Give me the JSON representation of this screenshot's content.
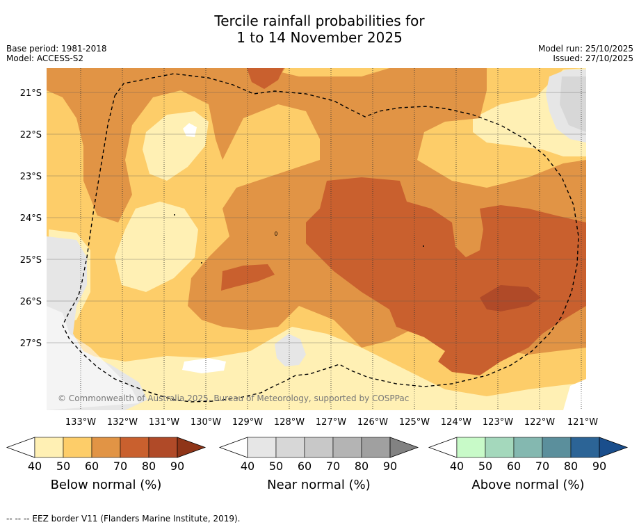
{
  "title": {
    "line1": "Tercile rainfall probabilities for",
    "line2": "1 to 14 November 2025"
  },
  "meta": {
    "base_period": "Base period: 1981-2018",
    "model": "Model: ACCESS-S2",
    "model_run": "Model run: 25/10/2025",
    "issued": "Issued: 27/10/2025"
  },
  "map": {
    "lat_labels": [
      "21°S",
      "22°S",
      "23°S",
      "24°S",
      "25°S",
      "26°S",
      "27°S"
    ],
    "lon_labels": [
      "133°W",
      "132°W",
      "131°W",
      "130°W",
      "129°W",
      "128°W",
      "127°W",
      "126°W",
      "125°W",
      "124°W",
      "123°W",
      "122°W",
      "121°W"
    ],
    "copyright": "© Commonwealth of Australia 2025, Bureau of Meteorology, supported by COSPPac"
  },
  "colorbars": [
    {
      "title": "Below normal (%)",
      "ticks": [
        "40",
        "50",
        "60",
        "70",
        "80",
        "90"
      ],
      "colors": [
        "#fff0b4",
        "#fdcd69",
        "#e19445",
        "#c9602e",
        "#b04a28",
        "#8f3518"
      ]
    },
    {
      "title": "Near normal (%)",
      "ticks": [
        "40",
        "50",
        "60",
        "70",
        "80",
        "90"
      ],
      "colors": [
        "#e6e6e6",
        "#d7d7d7",
        "#c8c8c8",
        "#b4b4b4",
        "#a0a0a0",
        "#828282"
      ]
    },
    {
      "title": "Above normal (%)",
      "ticks": [
        "40",
        "50",
        "60",
        "70",
        "80",
        "90"
      ],
      "colors": [
        "#c8fac8",
        "#a4d8bc",
        "#84b8b0",
        "#5b8f9c",
        "#2c6496",
        "#1a4e8c"
      ]
    }
  ],
  "footnote": "--  --  -- EEZ border V11 (Flanders Marine Institute, 2019)."
}
